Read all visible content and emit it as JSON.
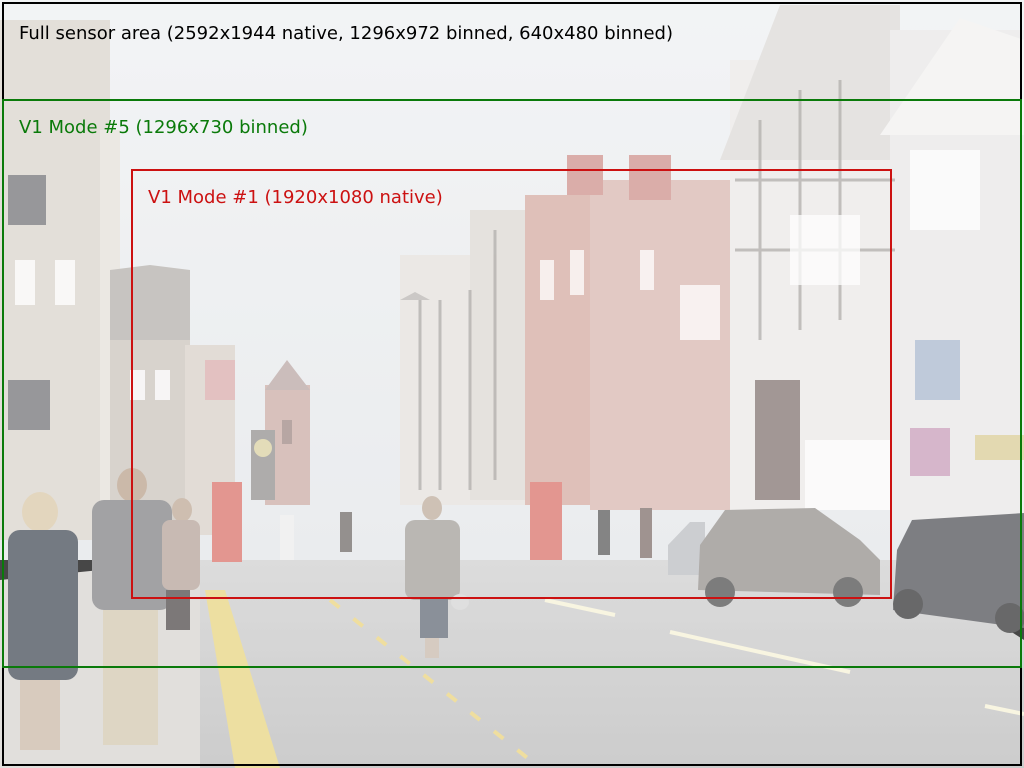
{
  "sensor_area": {
    "label": "Full sensor area (2592x1944 native, 1296x972 binned, 640x480 binned)",
    "color": "#000000"
  },
  "mode5": {
    "label": "V1 Mode #5 (1296x730 binned)",
    "color": "#0a7a0a"
  },
  "mode1": {
    "label": "V1 Mode #1 (1920x1080 native)",
    "color": "#cc1111"
  },
  "photo": {
    "subject": "street-scene-tudor-buildings-clock-tower"
  }
}
